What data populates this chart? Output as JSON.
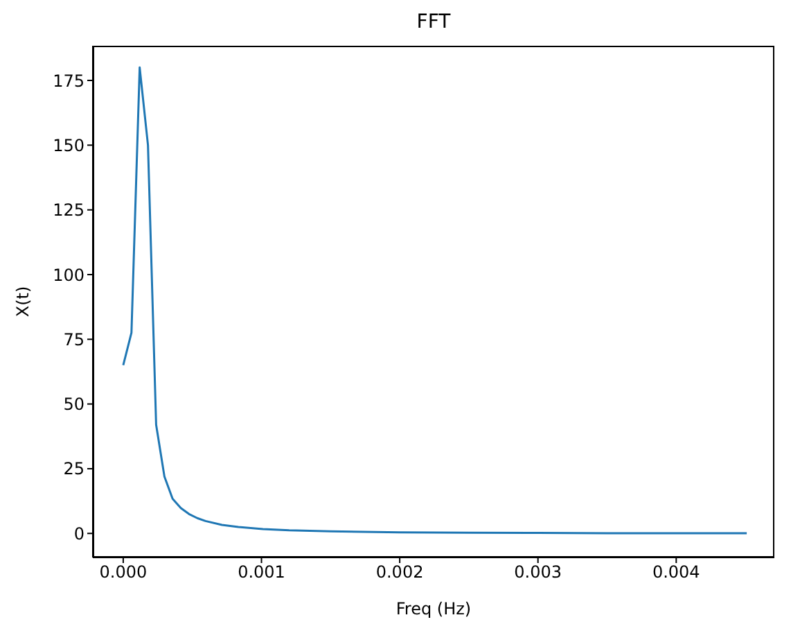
{
  "chart_data": {
    "type": "line",
    "title": "FFT",
    "xlabel": "Freq (Hz)",
    "ylabel": "X(t)",
    "x": [
      0,
      5.95e-05,
      0.000119,
      0.000179,
      0.000238,
      0.000298,
      0.000357,
      0.000417,
      0.000476,
      0.000536,
      0.000595,
      0.000714,
      0.000833,
      0.00101,
      0.0012,
      0.0015,
      0.002,
      0.0025,
      0.003,
      0.0035,
      0.004,
      0.00451
    ],
    "series": [
      {
        "color": "#1f77b4",
        "values": [
          65,
          77.5,
          180,
          150,
          42,
          22,
          13.4,
          9.8,
          7.5,
          5.9,
          4.8,
          3.3,
          2.5,
          1.7,
          1.2,
          0.8,
          0.4,
          0.3,
          0.2,
          0.1,
          0.1,
          0.1
        ]
      }
    ],
    "xlim": [
      -0.00022,
      0.00471
    ],
    "ylim": [
      -9.3,
      188.4
    ],
    "xticks": [
      {
        "value": 0,
        "label": "0.000"
      },
      {
        "value": 0.001,
        "label": "0.001"
      },
      {
        "value": 0.002,
        "label": "0.002"
      },
      {
        "value": 0.003,
        "label": "0.003"
      },
      {
        "value": 0.004,
        "label": "0.004"
      }
    ],
    "yticks": [
      0,
      25,
      50,
      75,
      100,
      125,
      150,
      175
    ],
    "grid": false,
    "legend": false,
    "marker": "none",
    "line_style": "solid"
  }
}
